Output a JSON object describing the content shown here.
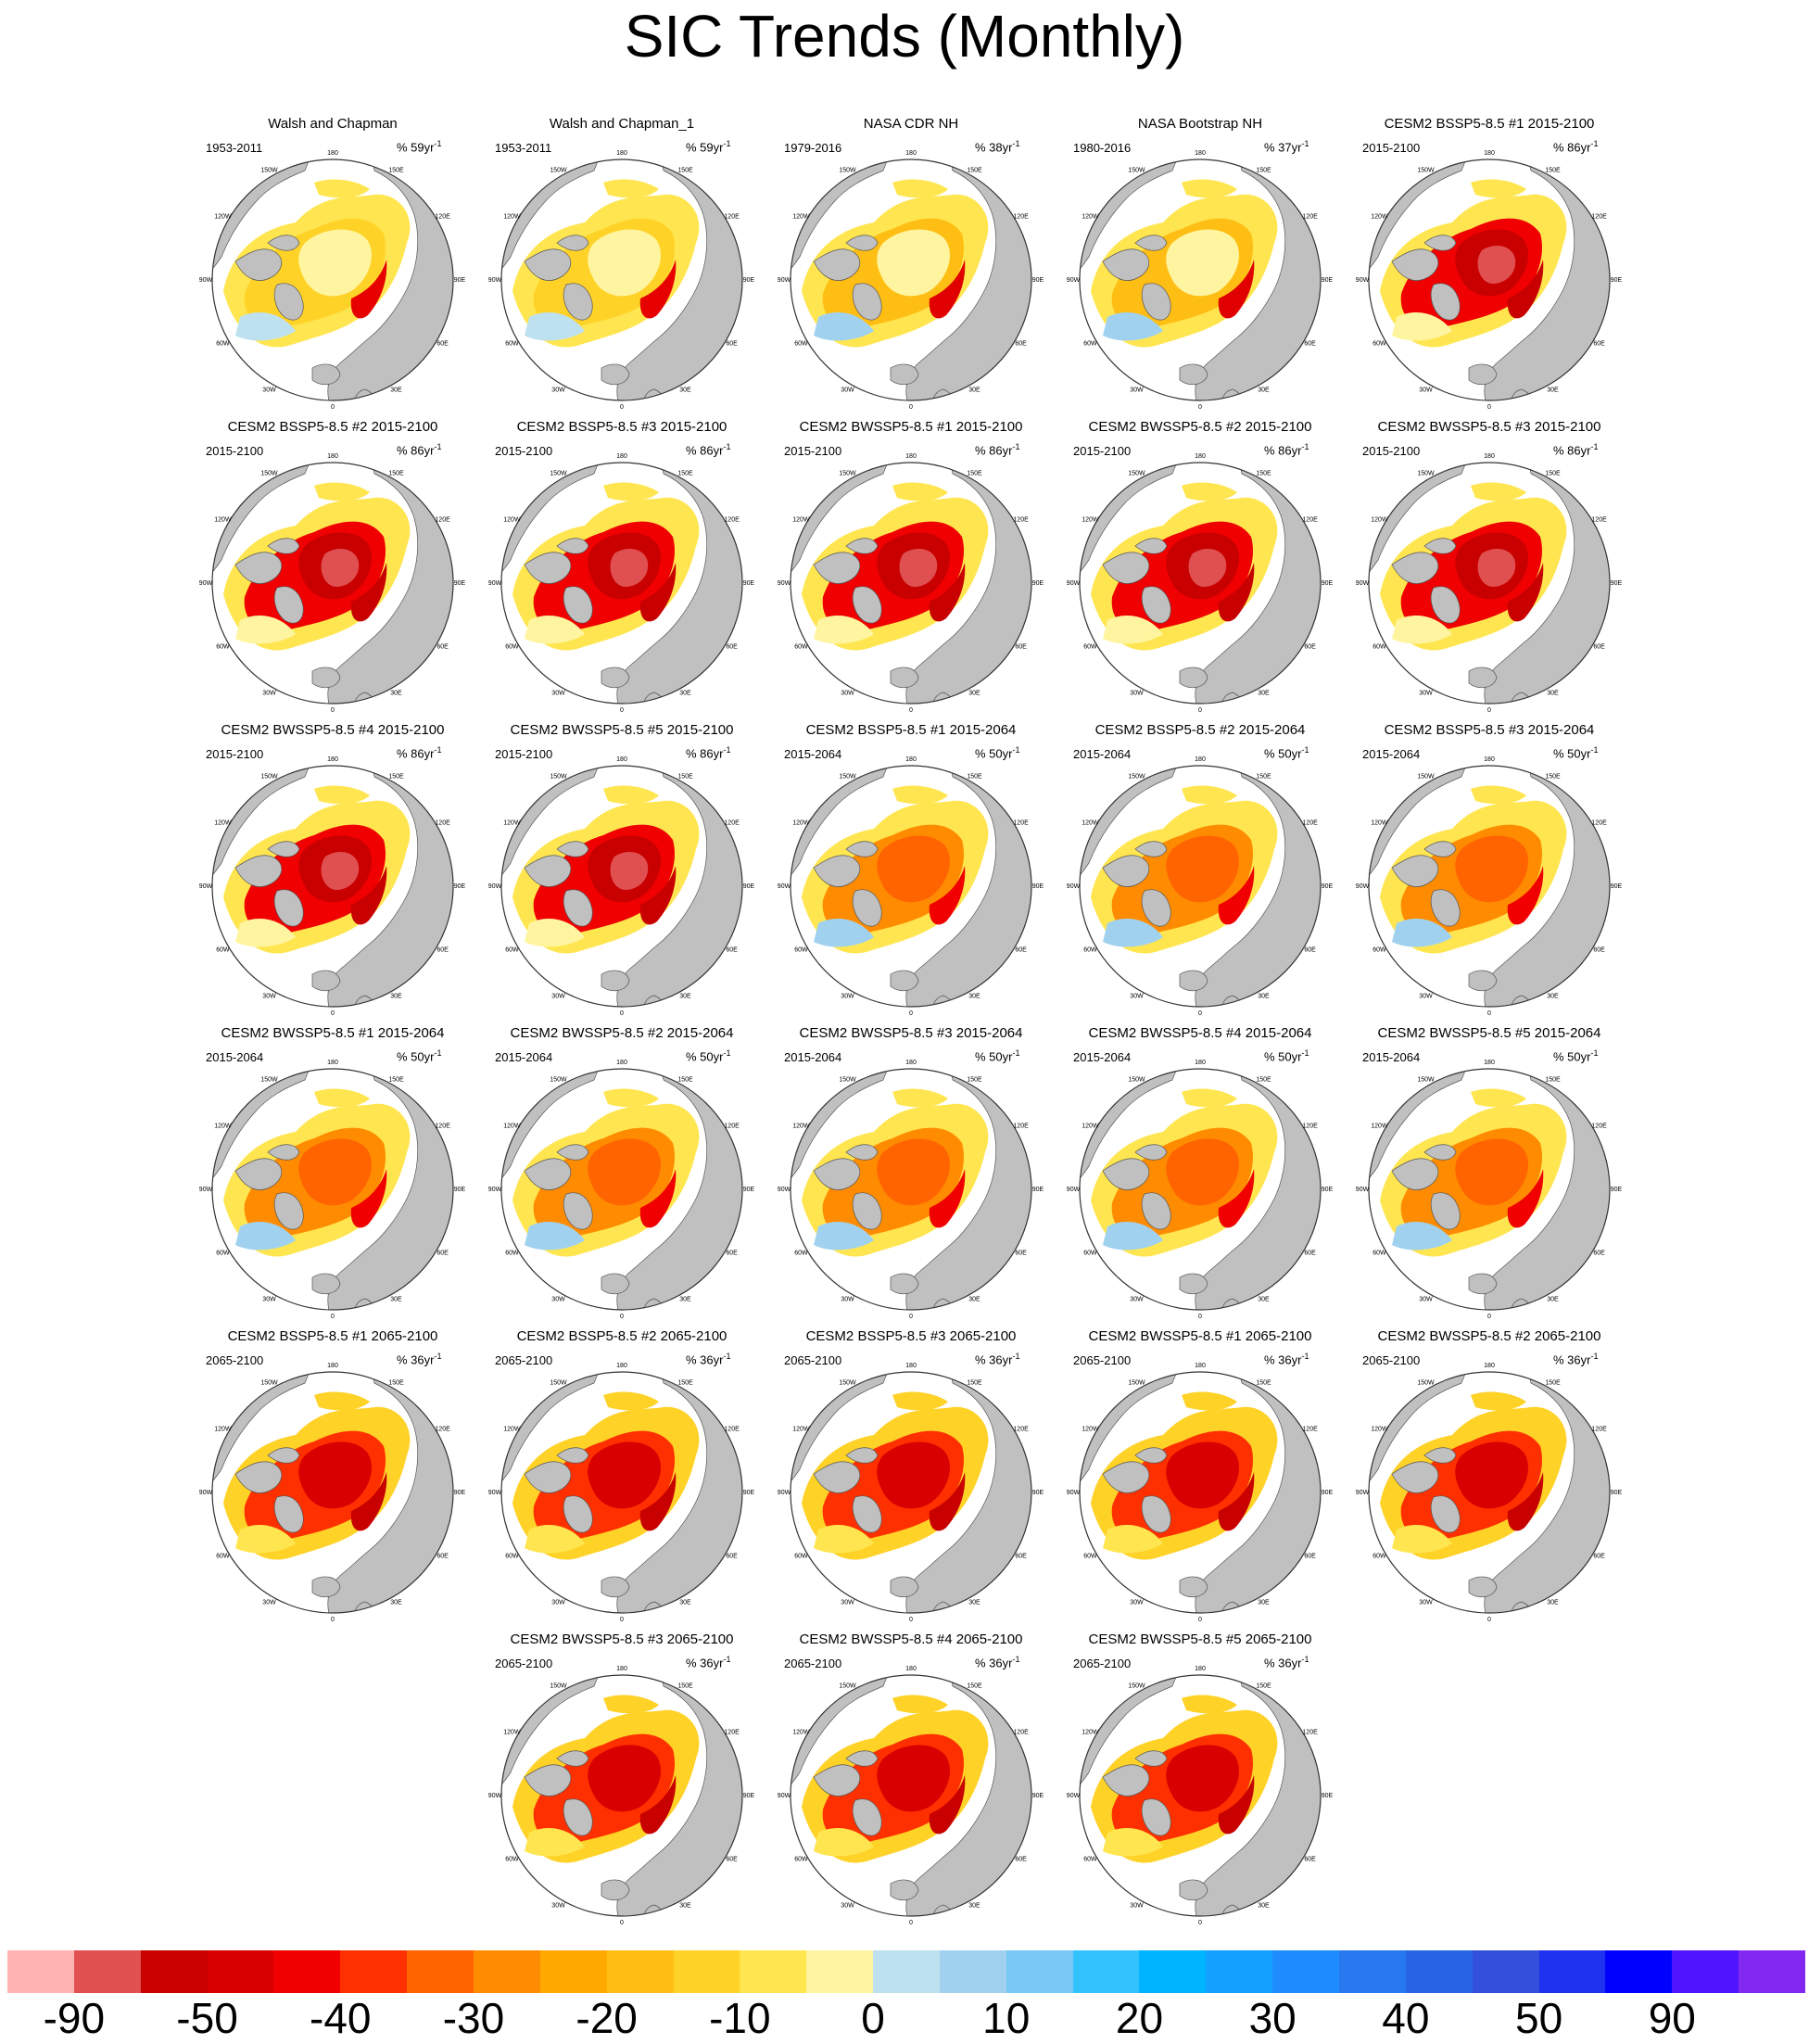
{
  "title": "SIC Trends (Monthly)",
  "units_label": "%",
  "units_suffix": "yr",
  "units_exp": "-1",
  "lon_labels": [
    "180",
    "150E",
    "120E",
    "90E",
    "60E",
    "30E",
    "0",
    "30W",
    "60W",
    "90W",
    "120W",
    "150W"
  ],
  "chart_data": {
    "type": "heatmap",
    "title": "SIC Trends (Monthly)",
    "projection": "polar-stereographic-north",
    "panels": [
      {
        "title": "Walsh and Chapman",
        "period": "1953-2011",
        "scale": "59",
        "pattern": "obs1"
      },
      {
        "title": "Walsh and Chapman_1",
        "period": "1953-2011",
        "scale": "59",
        "pattern": "obs1"
      },
      {
        "title": "NASA CDR NH",
        "period": "1979-2016",
        "scale": "38",
        "pattern": "obs2"
      },
      {
        "title": "NASA Bootstrap NH",
        "period": "1980-2016",
        "scale": "37",
        "pattern": "obs2"
      },
      {
        "title": "CESM2 BSSP5-8.5 #1 2015-2100",
        "period": "2015-2100",
        "scale": "86",
        "pattern": "full"
      },
      {
        "title": "CESM2 BSSP5-8.5 #2 2015-2100",
        "period": "2015-2100",
        "scale": "86",
        "pattern": "full"
      },
      {
        "title": "CESM2 BSSP5-8.5 #3 2015-2100",
        "period": "2015-2100",
        "scale": "86",
        "pattern": "full"
      },
      {
        "title": "CESM2 BWSSP5-8.5 #1 2015-2100",
        "period": "2015-2100",
        "scale": "86",
        "pattern": "full"
      },
      {
        "title": "CESM2 BWSSP5-8.5 #2 2015-2100",
        "period": "2015-2100",
        "scale": "86",
        "pattern": "full"
      },
      {
        "title": "CESM2 BWSSP5-8.5 #3 2015-2100",
        "period": "2015-2100",
        "scale": "86",
        "pattern": "full"
      },
      {
        "title": "CESM2 BWSSP5-8.5 #4 2015-2100",
        "period": "2015-2100",
        "scale": "86",
        "pattern": "full"
      },
      {
        "title": "CESM2 BWSSP5-8.5 #5 2015-2100",
        "period": "2015-2100",
        "scale": "86",
        "pattern": "full"
      },
      {
        "title": "CESM2 BSSP5-8.5 #1 2015-2064",
        "period": "2015-2064",
        "scale": "50",
        "pattern": "early"
      },
      {
        "title": "CESM2 BSSP5-8.5 #2 2015-2064",
        "period": "2015-2064",
        "scale": "50",
        "pattern": "early"
      },
      {
        "title": "CESM2 BSSP5-8.5 #3 2015-2064",
        "period": "2015-2064",
        "scale": "50",
        "pattern": "early"
      },
      {
        "title": "CESM2 BWSSP5-8.5 #1 2015-2064",
        "period": "2015-2064",
        "scale": "50",
        "pattern": "early"
      },
      {
        "title": "CESM2 BWSSP5-8.5 #2 2015-2064",
        "period": "2015-2064",
        "scale": "50",
        "pattern": "early"
      },
      {
        "title": "CESM2 BWSSP5-8.5 #3 2015-2064",
        "period": "2015-2064",
        "scale": "50",
        "pattern": "early"
      },
      {
        "title": "CESM2 BWSSP5-8.5 #4 2015-2064",
        "period": "2015-2064",
        "scale": "50",
        "pattern": "early"
      },
      {
        "title": "CESM2 BWSSP5-8.5 #5 2015-2064",
        "period": "2015-2064",
        "scale": "50",
        "pattern": "early"
      },
      {
        "title": "CESM2 BSSP5-8.5 #1 2065-2100",
        "period": "2065-2100",
        "scale": "36",
        "pattern": "late"
      },
      {
        "title": "CESM2 BSSP5-8.5 #2 2065-2100",
        "period": "2065-2100",
        "scale": "36",
        "pattern": "late"
      },
      {
        "title": "CESM2 BSSP5-8.5 #3 2065-2100",
        "period": "2065-2100",
        "scale": "36",
        "pattern": "late"
      },
      {
        "title": "CESM2 BWSSP5-8.5 #1 2065-2100",
        "period": "2065-2100",
        "scale": "36",
        "pattern": "late"
      },
      {
        "title": "CESM2 BWSSP5-8.5 #2 2065-2100",
        "period": "2065-2100",
        "scale": "36",
        "pattern": "late"
      },
      {
        "title": "CESM2 BWSSP5-8.5 #3 2065-2100",
        "period": "2065-2100",
        "scale": "36",
        "pattern": "late"
      },
      {
        "title": "CESM2 BWSSP5-8.5 #4 2065-2100",
        "period": "2065-2100",
        "scale": "36",
        "pattern": "late"
      },
      {
        "title": "CESM2 BWSSP5-8.5 #5 2065-2100",
        "period": "2065-2100",
        "scale": "36",
        "pattern": "late"
      }
    ],
    "colorbar": {
      "colors": [
        "#ffb4b4",
        "#e05050",
        "#c80000",
        "#d80000",
        "#f00000",
        "#ff3000",
        "#ff6400",
        "#ff8c00",
        "#ffa800",
        "#ffbe14",
        "#ffd228",
        "#ffe650",
        "#fff5a0",
        "#bee1f0",
        "#a0d2f0",
        "#78c8f5",
        "#32c3ff",
        "#00b4ff",
        "#14a0ff",
        "#1e8cff",
        "#2878f0",
        "#2864e6",
        "#3250dc",
        "#1e32f0",
        "#0000ff",
        "#5014ff",
        "#8228f0"
      ],
      "tick_labels": [
        "-90",
        "-50",
        "-40",
        "-30",
        "-20",
        "-10",
        "0",
        "10",
        "20",
        "30",
        "40",
        "50",
        "90"
      ],
      "tick_index": [
        1,
        3,
        5,
        7,
        9,
        11,
        13,
        15,
        17,
        19,
        21,
        23,
        25
      ]
    }
  }
}
